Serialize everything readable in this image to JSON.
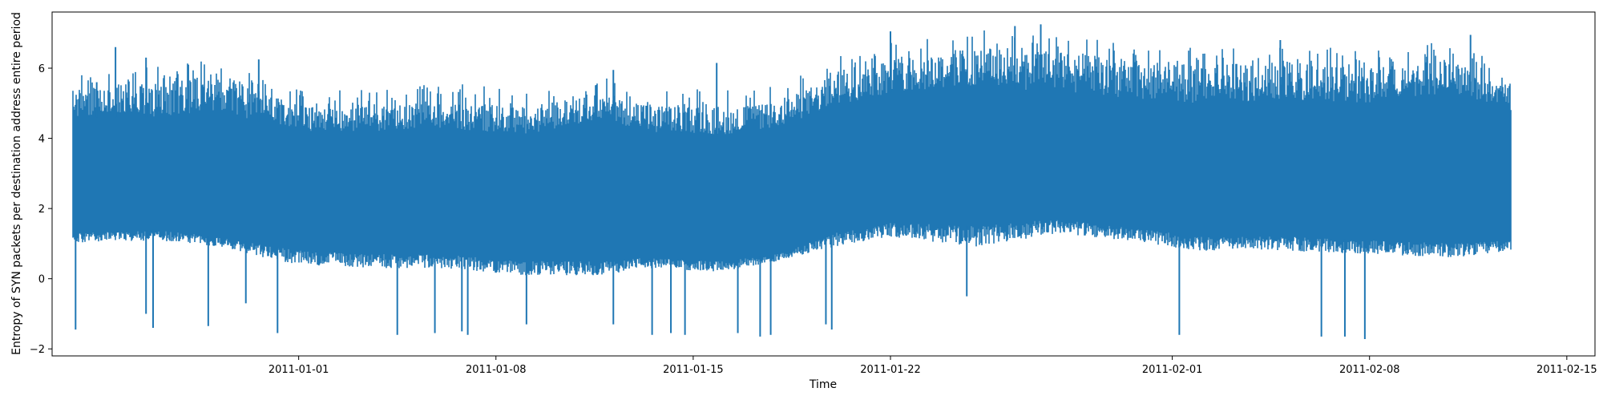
{
  "chart_data": {
    "type": "line",
    "title": "",
    "xlabel": "Time",
    "ylabel": "Entropy of SYN packets per destination address entire period",
    "xlim": [
      "2010-12-23T06:00:00",
      "2011-02-16T00:00:00"
    ],
    "ylim": [
      -2.2,
      7.6
    ],
    "x_ticks": [
      "2011-01-01",
      "2011-01-08",
      "2011-01-15",
      "2011-01-22",
      "2011-02-01",
      "2011-02-08",
      "2011-02-15"
    ],
    "y_ticks": [
      -2,
      0,
      2,
      4,
      6
    ],
    "grid": false,
    "legend": "none",
    "series": [
      {
        "color": "#1f77b4",
        "x_start": "2010-12-24",
        "x_end": "2011-02-13",
        "envelope": {
          "dates": [
            "2010-12-24",
            "2010-12-27",
            "2010-12-29",
            "2011-01-01",
            "2011-01-04",
            "2011-01-06",
            "2011-01-09",
            "2011-01-12",
            "2011-01-13",
            "2011-01-16",
            "2011-01-18",
            "2011-01-20",
            "2011-01-22",
            "2011-01-25",
            "2011-01-28",
            "2011-01-31",
            "2011-02-02",
            "2011-02-05",
            "2011-02-08",
            "2011-02-11",
            "2011-02-13"
          ],
          "upper": [
            5.4,
            5.6,
            5.9,
            4.9,
            4.9,
            5.1,
            4.9,
            5.3,
            5.0,
            4.9,
            5.0,
            5.8,
            6.3,
            6.6,
            6.5,
            6.2,
            6.1,
            6.2,
            6.0,
            6.3,
            5.5
          ],
          "typical_high": [
            4.6,
            4.6,
            4.8,
            4.2,
            4.2,
            4.3,
            4.1,
            4.6,
            4.2,
            4.1,
            4.3,
            4.9,
            5.3,
            5.5,
            5.3,
            5.1,
            5.0,
            5.1,
            5.0,
            5.3,
            4.8
          ],
          "typical_low": [
            1.3,
            1.4,
            1.2,
            0.8,
            0.7,
            0.7,
            0.5,
            0.5,
            0.6,
            0.5,
            0.7,
            1.3,
            1.6,
            1.5,
            1.7,
            1.4,
            1.2,
            1.2,
            1.1,
            1.0,
            1.1
          ],
          "lower": [
            1.0,
            1.1,
            0.9,
            0.4,
            0.3,
            0.3,
            0.1,
            0.1,
            0.3,
            0.2,
            0.5,
            0.9,
            1.2,
            0.9,
            1.3,
            1.0,
            0.8,
            0.8,
            0.7,
            0.6,
            0.8
          ]
        },
        "spikes_down": [
          {
            "date": "2010-12-24T02:00:00",
            "value": -1.45
          },
          {
            "date": "2010-12-26T14:00:00",
            "value": -1.0
          },
          {
            "date": "2010-12-26T20:00:00",
            "value": -1.4
          },
          {
            "date": "2010-12-28T19:00:00",
            "value": -1.35
          },
          {
            "date": "2010-12-30T03:00:00",
            "value": -0.7
          },
          {
            "date": "2010-12-31T06:00:00",
            "value": -1.55
          },
          {
            "date": "2011-01-04T12:00:00",
            "value": -1.6
          },
          {
            "date": "2011-01-05T20:00:00",
            "value": -1.55
          },
          {
            "date": "2011-01-06T19:00:00",
            "value": -1.5
          },
          {
            "date": "2011-01-07T00:00:00",
            "value": -1.6
          },
          {
            "date": "2011-01-09T02:00:00",
            "value": -1.3
          },
          {
            "date": "2011-01-12T04:00:00",
            "value": -1.3
          },
          {
            "date": "2011-01-13T13:00:00",
            "value": -1.6
          },
          {
            "date": "2011-01-14T05:00:00",
            "value": -1.55
          },
          {
            "date": "2011-01-14T17:00:00",
            "value": -1.6
          },
          {
            "date": "2011-01-16T14:00:00",
            "value": -1.55
          },
          {
            "date": "2011-01-17T09:00:00",
            "value": -1.65
          },
          {
            "date": "2011-01-17T18:00:00",
            "value": -1.6
          },
          {
            "date": "2011-01-19T17:00:00",
            "value": -1.3
          },
          {
            "date": "2011-01-19T22:00:00",
            "value": -1.45
          },
          {
            "date": "2011-01-24T17:00:00",
            "value": -0.5
          },
          {
            "date": "2011-02-01T06:00:00",
            "value": -1.6
          },
          {
            "date": "2011-02-06T07:00:00",
            "value": -1.65
          },
          {
            "date": "2011-02-07T03:00:00",
            "value": -1.65
          },
          {
            "date": "2011-02-07T20:00:00",
            "value": -1.72
          }
        ],
        "spikes_up": [
          {
            "date": "2010-12-24T20:00:00",
            "value": 5.6
          },
          {
            "date": "2010-12-25T12:00:00",
            "value": 6.6
          },
          {
            "date": "2010-12-26T14:00:00",
            "value": 6.3
          },
          {
            "date": "2010-12-28T02:00:00",
            "value": 6.1
          },
          {
            "date": "2010-12-30T14:00:00",
            "value": 6.25
          },
          {
            "date": "2011-01-12T04:00:00",
            "value": 5.95
          },
          {
            "date": "2011-01-15T20:00:00",
            "value": 6.15
          },
          {
            "date": "2011-01-22T00:00:00",
            "value": 7.05
          },
          {
            "date": "2011-01-26T10:00:00",
            "value": 7.2
          },
          {
            "date": "2011-01-27T08:00:00",
            "value": 7.25
          },
          {
            "date": "2011-02-04T20:00:00",
            "value": 6.8
          },
          {
            "date": "2011-02-11T14:00:00",
            "value": 6.95
          }
        ]
      }
    ]
  }
}
